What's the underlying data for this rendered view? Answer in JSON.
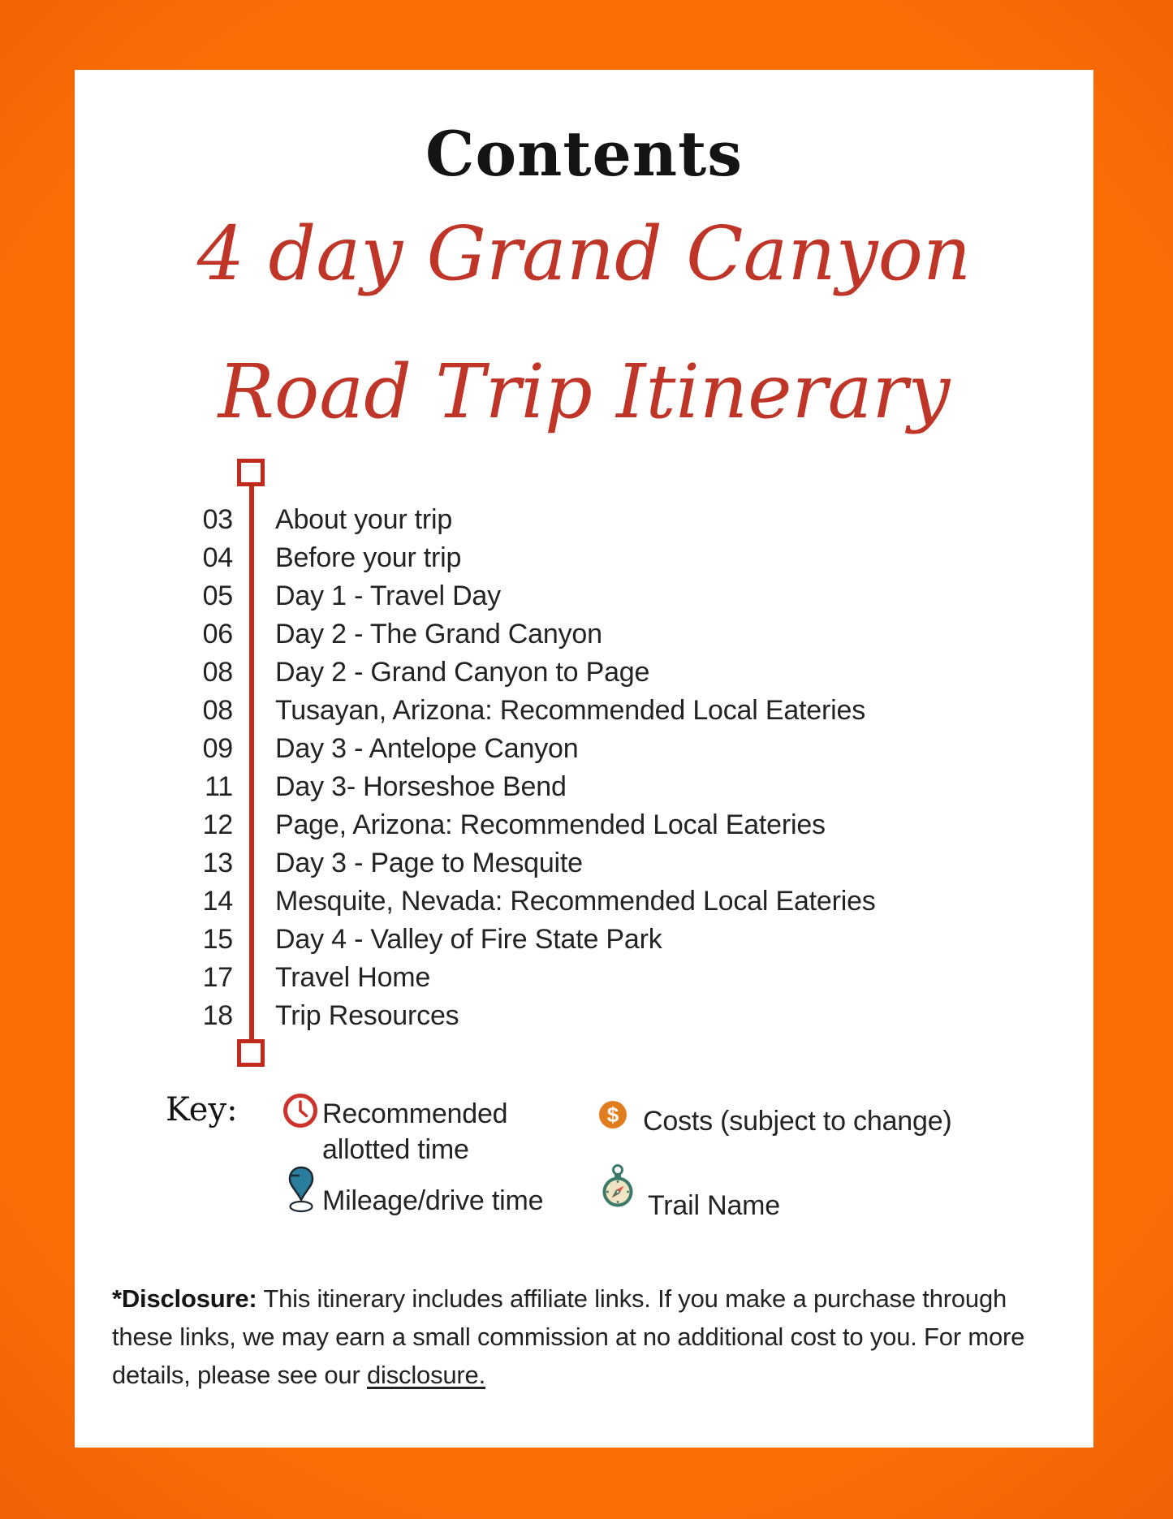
{
  "page": {
    "title": "Contents",
    "subtitle_line1": "4 day Grand Canyon",
    "subtitle_line2": "Road Trip Itinerary"
  },
  "toc": {
    "entries": [
      {
        "page": "03",
        "label": "About your trip"
      },
      {
        "page": "04",
        "label": "Before your trip"
      },
      {
        "page": "05",
        "label": "Day 1 - Travel Day"
      },
      {
        "page": "06",
        "label": "Day 2 - The Grand Canyon"
      },
      {
        "page": "08",
        "label": "Day 2 - Grand Canyon to Page"
      },
      {
        "page": "08",
        "label": "Tusayan, Arizona: Recommended Local Eateries"
      },
      {
        "page": "09",
        "label": "Day 3 - Antelope Canyon"
      },
      {
        "page": "11",
        "label": "Day 3- Horseshoe Bend"
      },
      {
        "page": "12",
        "label": "Page, Arizona: Recommended Local Eateries"
      },
      {
        "page": "13",
        "label": "Day 3 - Page to Mesquite"
      },
      {
        "page": "14",
        "label": "Mesquite, Nevada: Recommended Local Eateries"
      },
      {
        "page": "15",
        "label": "Day 4 - Valley of Fire State Park"
      },
      {
        "page": "17",
        "label": "Travel Home"
      },
      {
        "page": "18",
        "label": "Trip Resources"
      }
    ]
  },
  "key": {
    "heading": "Key:",
    "items": [
      {
        "icon": "clock-icon",
        "label": "Recommended allotted time"
      },
      {
        "icon": "map-pin-icon",
        "label": "Mileage/drive time"
      },
      {
        "icon": "dollar-icon",
        "label": "Costs (subject to change)"
      },
      {
        "icon": "compass-icon",
        "label": "Trail Name"
      }
    ]
  },
  "disclosure": {
    "bold_prefix": "*Disclosure:",
    "text": " This itinerary includes affiliate links. If you make a purchase through these links, we may earn a small commission at no additional cost to you. For more details, please see our ",
    "link_text": "disclosure."
  },
  "colors": {
    "border_orange_bright": "#fa6d05",
    "border_orange_dark": "#b03c01",
    "accent_red": "#c22a1e",
    "script_red": "#bf3527",
    "clock_red": "#cd332b",
    "pin_teal": "#2a7d9c",
    "dollar_orange": "#e07e1f",
    "compass_green": "#3b7a68",
    "compass_face": "#f0e4c4",
    "text": "#232323"
  }
}
